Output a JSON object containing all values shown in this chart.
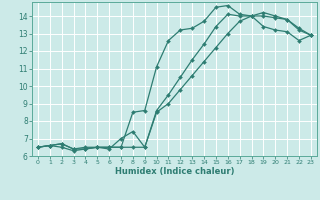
{
  "xlabel": "Humidex (Indice chaleur)",
  "ylabel": "",
  "bg_color": "#cceae8",
  "grid_color": "#ffffff",
  "line_color": "#2e7d72",
  "xlim": [
    -0.5,
    23.5
  ],
  "ylim": [
    6.0,
    14.8
  ],
  "xticks": [
    0,
    1,
    2,
    3,
    4,
    5,
    6,
    7,
    8,
    9,
    10,
    11,
    12,
    13,
    14,
    15,
    16,
    17,
    18,
    19,
    20,
    21,
    22,
    23
  ],
  "yticks": [
    6,
    7,
    8,
    9,
    10,
    11,
    12,
    13,
    14
  ],
  "curves": [
    {
      "x": [
        0,
        1,
        2,
        3,
        4,
        5,
        6,
        7,
        8,
        9,
        10,
        11,
        12,
        13,
        14,
        15,
        16,
        17,
        18,
        19,
        20,
        21,
        22,
        23
      ],
      "y": [
        6.5,
        6.6,
        6.7,
        6.4,
        6.5,
        6.5,
        6.5,
        6.5,
        8.5,
        8.6,
        11.1,
        12.6,
        13.2,
        13.3,
        13.7,
        14.5,
        14.6,
        14.1,
        14.0,
        13.4,
        13.2,
        13.1,
        12.6,
        12.9
      ]
    },
    {
      "x": [
        0,
        1,
        2,
        3,
        4,
        5,
        6,
        7,
        8,
        9,
        10,
        11,
        12,
        13,
        14,
        15,
        16,
        17,
        18,
        19,
        20,
        21,
        22,
        23
      ],
      "y": [
        6.5,
        6.6,
        6.5,
        6.3,
        6.4,
        6.5,
        6.4,
        7.0,
        7.4,
        6.5,
        8.6,
        9.5,
        10.5,
        11.5,
        12.4,
        13.4,
        14.1,
        14.0,
        14.0,
        14.0,
        13.9,
        13.8,
        13.3,
        12.9
      ]
    },
    {
      "x": [
        0,
        1,
        2,
        3,
        4,
        5,
        6,
        7,
        8,
        9,
        10,
        11,
        12,
        13,
        14,
        15,
        16,
        17,
        18,
        19,
        20,
        21,
        22,
        23
      ],
      "y": [
        6.5,
        6.6,
        6.7,
        6.4,
        6.4,
        6.5,
        6.5,
        6.5,
        6.5,
        6.5,
        8.5,
        9.0,
        9.8,
        10.6,
        11.4,
        12.2,
        13.0,
        13.7,
        14.0,
        14.2,
        14.0,
        13.8,
        13.2,
        12.9
      ]
    }
  ]
}
